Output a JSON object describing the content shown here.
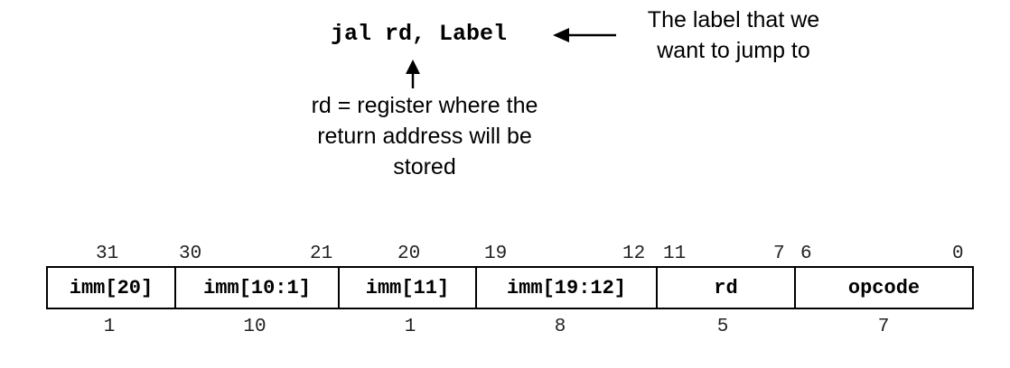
{
  "instruction": "jal rd, Label",
  "label_note": [
    "The label that we",
    "want to jump to"
  ],
  "rd_note": [
    "rd = register where the",
    "return address will be",
    "stored"
  ],
  "bit_labels": [
    "31",
    "30",
    "21",
    "20",
    "19",
    "12",
    "11",
    "7",
    "6",
    "0"
  ],
  "fields": [
    {
      "name": "imm[20]",
      "width": "1"
    },
    {
      "name": "imm[10:1]",
      "width": "10"
    },
    {
      "name": "imm[11]",
      "width": "1"
    },
    {
      "name": "imm[19:12]",
      "width": "8"
    },
    {
      "name": "rd",
      "width": "5"
    },
    {
      "name": "opcode",
      "width": "7"
    }
  ]
}
